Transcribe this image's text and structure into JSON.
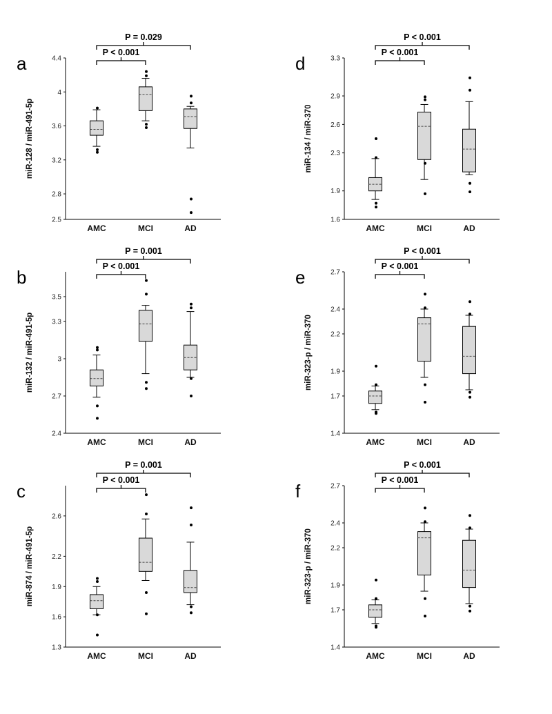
{
  "chart_data": [
    {
      "panel_letter": "a",
      "type": "box",
      "ylabel": "miR-128 / miR-491-5p",
      "categories": [
        "AMC",
        "MCI",
        "AD"
      ],
      "ylim": [
        2.5,
        4.4
      ],
      "yticks": [
        "2.5",
        "2.8",
        "3.2",
        "3.6",
        "4",
        "4.4"
      ],
      "ytick_values": [
        2.5,
        2.8,
        3.2,
        3.6,
        4.0,
        4.4
      ],
      "boxes": [
        {
          "q1": 3.49,
          "median": 3.56,
          "q3": 3.66,
          "wlo": 3.36,
          "whi": 3.79,
          "outliers": [
            3.81,
            3.32,
            3.29
          ]
        },
        {
          "q1": 3.78,
          "median": 3.97,
          "q3": 4.06,
          "wlo": 3.66,
          "whi": 4.16,
          "outliers": [
            4.24,
            4.19,
            3.62,
            3.58
          ]
        },
        {
          "q1": 3.57,
          "median": 3.71,
          "q3": 3.8,
          "wlo": 3.34,
          "whi": 3.83,
          "outliers": [
            3.95,
            3.87,
            2.74,
            2.58
          ]
        }
      ],
      "comparisons": [
        {
          "label": "P < 0.001"
        },
        {
          "label": "P = 0.029"
        }
      ]
    },
    {
      "panel_letter": "b",
      "type": "box",
      "ylabel": "miR-132 / miR-491-5p",
      "categories": [
        "AMC",
        "MCI",
        "AD"
      ],
      "ylim": [
        2.4,
        3.7
      ],
      "yticks": [
        "2.4",
        "2.7",
        "3",
        "3.3",
        "3.5"
      ],
      "ytick_values": [
        2.4,
        2.7,
        3.0,
        3.3,
        3.5
      ],
      "boxes": [
        {
          "q1": 2.78,
          "median": 2.84,
          "q3": 2.91,
          "wlo": 2.69,
          "whi": 3.03,
          "outliers": [
            3.09,
            3.07,
            2.62,
            2.52
          ]
        },
        {
          "q1": 3.14,
          "median": 3.28,
          "q3": 3.39,
          "wlo": 2.88,
          "whi": 3.43,
          "outliers": [
            3.63,
            3.52,
            2.81,
            2.76
          ]
        },
        {
          "q1": 2.91,
          "median": 3.01,
          "q3": 3.11,
          "wlo": 2.85,
          "whi": 3.38,
          "outliers": [
            3.41,
            3.44,
            2.84,
            2.7
          ]
        }
      ],
      "comparisons": [
        {
          "label": "P < 0.001"
        },
        {
          "label": "P = 0.001"
        }
      ]
    },
    {
      "panel_letter": "c",
      "type": "box",
      "ylabel": "miR-874 / miR-491-5p",
      "categories": [
        "AMC",
        "MCI",
        "AD"
      ],
      "ylim": [
        1.3,
        2.9
      ],
      "yticks": [
        "1.3",
        "1.6",
        "1.9",
        "2.2",
        "2.6"
      ],
      "ytick_values": [
        1.3,
        1.6,
        1.9,
        2.2,
        2.6
      ],
      "boxes": [
        {
          "q1": 1.68,
          "median": 1.76,
          "q3": 1.82,
          "wlo": 1.62,
          "whi": 1.9,
          "outliers": [
            1.98,
            1.95,
            1.62,
            1.42
          ]
        },
        {
          "q1": 2.05,
          "median": 2.14,
          "q3": 2.38,
          "wlo": 1.96,
          "whi": 2.57,
          "outliers": [
            2.81,
            2.62,
            1.84,
            1.63
          ]
        },
        {
          "q1": 1.84,
          "median": 1.89,
          "q3": 2.06,
          "wlo": 1.72,
          "whi": 2.34,
          "outliers": [
            2.68,
            2.51,
            1.7,
            1.64
          ]
        }
      ],
      "comparisons": [
        {
          "label": "P < 0.001"
        },
        {
          "label": "P = 0.001"
        }
      ]
    },
    {
      "panel_letter": "d",
      "type": "box",
      "ylabel": "miR-134 / miR-370",
      "categories": [
        "AMC",
        "MCI",
        "AD"
      ],
      "ylim": [
        1.6,
        3.3
      ],
      "yticks": [
        "1.6",
        "1.9",
        "2.3",
        "2.6",
        "2.9",
        "3.3"
      ],
      "ytick_values": [
        1.6,
        1.9,
        2.3,
        2.6,
        2.9,
        3.3
      ],
      "boxes": [
        {
          "q1": 1.9,
          "median": 1.97,
          "q3": 2.04,
          "wlo": 1.81,
          "whi": 2.24,
          "outliers": [
            2.45,
            2.25,
            1.77,
            1.73
          ]
        },
        {
          "q1": 2.23,
          "median": 2.58,
          "q3": 2.73,
          "wlo": 2.02,
          "whi": 2.81,
          "outliers": [
            2.89,
            2.86,
            2.19,
            1.87
          ]
        },
        {
          "q1": 2.1,
          "median": 2.34,
          "q3": 2.55,
          "wlo": 2.07,
          "whi": 2.84,
          "outliers": [
            3.09,
            2.96,
            1.98,
            1.89
          ]
        }
      ],
      "comparisons": [
        {
          "label": "P < 0.001"
        },
        {
          "label": "P < 0.001"
        }
      ]
    },
    {
      "panel_letter": "e",
      "type": "box",
      "ylabel": "miR-323-p / miR-370",
      "categories": [
        "AMC",
        "MCI",
        "AD"
      ],
      "ylim": [
        1.4,
        2.7
      ],
      "yticks": [
        "1.4",
        "1.7",
        "1.9",
        "2.2",
        "2.4",
        "2.7"
      ],
      "ytick_values": [
        1.4,
        1.7,
        1.9,
        2.2,
        2.4,
        2.7
      ],
      "boxes": [
        {
          "q1": 1.64,
          "median": 1.7,
          "q3": 1.74,
          "wlo": 1.59,
          "whi": 1.78,
          "outliers": [
            1.94,
            1.79,
            1.57,
            1.56
          ]
        },
        {
          "q1": 1.98,
          "median": 2.28,
          "q3": 2.33,
          "wlo": 1.85,
          "whi": 2.4,
          "outliers": [
            2.52,
            2.41,
            1.79,
            1.65
          ]
        },
        {
          "q1": 1.88,
          "median": 2.02,
          "q3": 2.26,
          "wlo": 1.75,
          "whi": 2.35,
          "outliers": [
            2.46,
            2.36,
            1.73,
            1.69
          ]
        }
      ],
      "comparisons": [
        {
          "label": "P < 0.001"
        },
        {
          "label": "P < 0.001"
        }
      ]
    },
    {
      "panel_letter": "f",
      "type": "box",
      "ylabel": "miR-323-p / miR-370",
      "categories": [
        "AMC",
        "MCI",
        "AD"
      ],
      "ylim": [
        1.4,
        2.7
      ],
      "yticks": [
        "1.4",
        "1.7",
        "1.9",
        "2.2",
        "2.4",
        "2.7"
      ],
      "ytick_values": [
        1.4,
        1.7,
        1.9,
        2.2,
        2.4,
        2.7
      ],
      "boxes": [
        {
          "q1": 1.64,
          "median": 1.7,
          "q3": 1.74,
          "wlo": 1.59,
          "whi": 1.78,
          "outliers": [
            1.94,
            1.79,
            1.57,
            1.56
          ]
        },
        {
          "q1": 1.98,
          "median": 2.28,
          "q3": 2.33,
          "wlo": 1.85,
          "whi": 2.4,
          "outliers": [
            2.52,
            2.41,
            1.79,
            1.65
          ]
        },
        {
          "q1": 1.88,
          "median": 2.02,
          "q3": 2.26,
          "wlo": 1.75,
          "whi": 2.35,
          "outliers": [
            2.46,
            2.36,
            1.73,
            1.69
          ]
        }
      ],
      "comparisons": [
        {
          "label": "P < 0.001"
        },
        {
          "label": "P < 0.001"
        }
      ]
    }
  ],
  "colors": {
    "box_fill": "#d9d9d9",
    "line": "#000000",
    "median_line": "#444444"
  }
}
